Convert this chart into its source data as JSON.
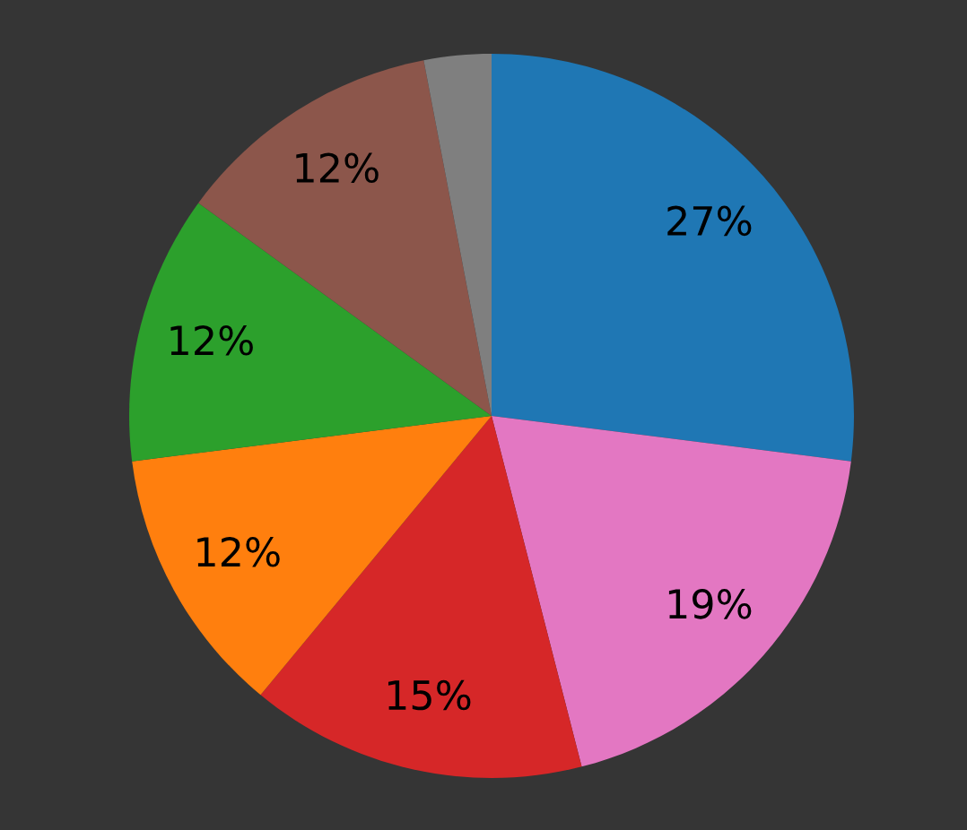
{
  "chart_data": {
    "type": "pie",
    "categories": [
      null,
      null,
      null,
      null,
      null,
      null,
      null
    ],
    "values": [
      27,
      19,
      15,
      12,
      12,
      12,
      3
    ],
    "colors": [
      "#1f77b4",
      "#e377c2",
      "#d62728",
      "#ff7f0e",
      "#2ca02c",
      "#8c564b",
      "#7f7f7f"
    ],
    "value_labels": [
      "27%",
      "19%",
      "15%",
      "12%",
      "12%",
      "12%",
      null
    ]
  }
}
